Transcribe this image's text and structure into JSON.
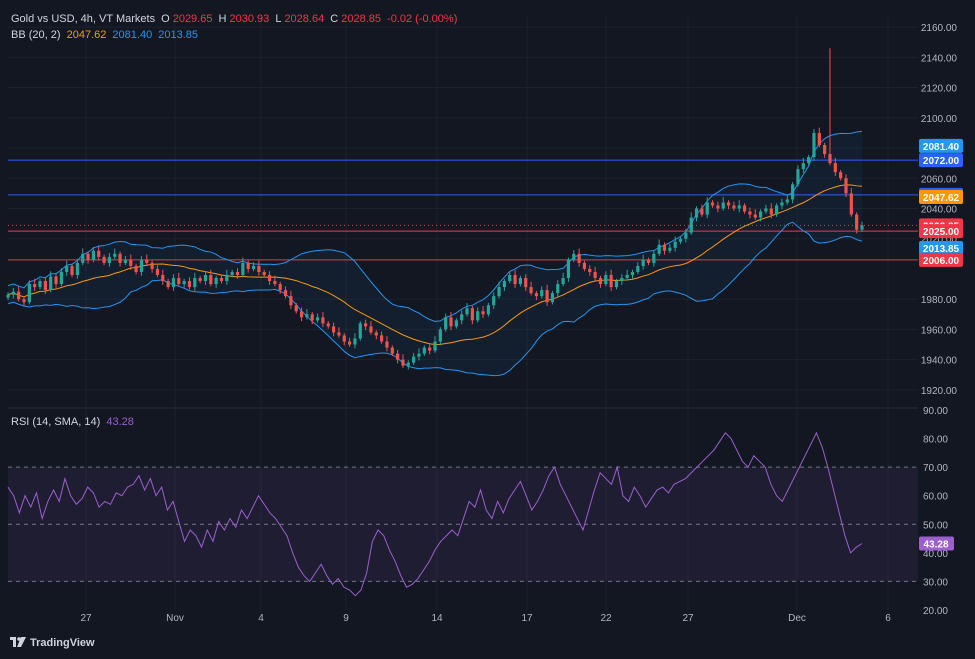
{
  "header": {
    "symbol": "Gold vs USD, 4h, VT Markets",
    "o_label": "O",
    "o_value": "2029.65",
    "h_label": "H",
    "h_value": "2030.93",
    "l_label": "L",
    "l_value": "2028.64",
    "c_label": "C",
    "c_value": "2028.85",
    "change": "-0.02 (-0.00%)",
    "bb_label": "BB (20, 2)",
    "bb_basis": "2047.62",
    "bb_upper": "2081.40",
    "bb_lower": "2013.85",
    "rsi_label": "RSI (14, SMA, 14)",
    "rsi_value": "43.28"
  },
  "watermark": "TradingView",
  "colors": {
    "background": "#131722",
    "up": "#26a69a",
    "down": "#ef5350",
    "bb_band": "#2196f3",
    "bb_basis": "#ff9800",
    "rsi": "#9c5fd0",
    "level_blue": "#2962ff",
    "level_red": "#f23645"
  },
  "chart_data": [
    {
      "type": "candlestick",
      "name": "Gold vs USD 4h",
      "x_ticks": [
        "27",
        "Nov",
        "4",
        "9",
        "14",
        "17",
        "22",
        "27",
        "Dec",
        "6"
      ],
      "y_ticks": [
        "2160.00",
        "2140.00",
        "2120.00",
        "2100.00",
        "2080.00",
        "2060.00",
        "2040.00",
        "2020.00",
        "1980.00",
        "1960.00",
        "1940.00",
        "1920.00"
      ],
      "ylim": [
        1910,
        2168
      ],
      "price_labels": [
        {
          "text": "2081.40",
          "value": 2081.4,
          "color": "#2196f3"
        },
        {
          "text": "2072.00",
          "value": 2072.0,
          "color": "#2962ff"
        },
        {
          "text": "2049.00",
          "value": 2049.0,
          "color": "#2962ff"
        },
        {
          "text": "2047.62",
          "value": 2047.62,
          "color": "#ff9800"
        },
        {
          "text": "2028.85",
          "value": 2028.85,
          "color": "#f23645"
        },
        {
          "text": "2025.00",
          "value": 2025.0,
          "color": "#f23645"
        },
        {
          "text": "2013.85",
          "value": 2013.85,
          "color": "#2196f3"
        },
        {
          "text": "2006.00",
          "value": 2006.0,
          "color": "#f23645"
        }
      ],
      "horizontal_levels": [
        {
          "value": 2072.0,
          "color": "#2962ff",
          "style": "solid"
        },
        {
          "value": 2049.0,
          "color": "#2962ff",
          "style": "solid"
        },
        {
          "value": 2025.0,
          "color": "#f23645",
          "style": "solid"
        },
        {
          "value": 2006.0,
          "color": "#f23645",
          "style": "solid"
        },
        {
          "value": 2028.85,
          "color": "#f23645",
          "style": "dotted"
        }
      ],
      "close_series": [
        1983,
        1985,
        1980,
        1978,
        1990,
        1988,
        1992,
        1986,
        1995,
        1990,
        1998,
        2002,
        1996,
        2004,
        2010,
        2006,
        2012,
        2008,
        2004,
        2008,
        2010,
        2004,
        2006,
        2002,
        1998,
        2006,
        2004,
        2000,
        1996,
        1992,
        1988,
        1994,
        1990,
        1992,
        1988,
        1994,
        1992,
        1996,
        1990,
        1994,
        1992,
        1996,
        1998,
        1996,
        2004,
        2000,
        2002,
        1998,
        1996,
        1992,
        1990,
        1986,
        1982,
        1976,
        1972,
        1968,
        1970,
        1966,
        1968,
        1964,
        1962,
        1958,
        1956,
        1952,
        1950,
        1954,
        1964,
        1962,
        1958,
        1956,
        1952,
        1948,
        1944,
        1940,
        1936,
        1938,
        1942,
        1944,
        1948,
        1946,
        1952,
        1960,
        1968,
        1962,
        1966,
        1970,
        1974,
        1966,
        1972,
        1970,
        1976,
        1982,
        1988,
        1992,
        1996,
        1990,
        1994,
        1988,
        1984,
        1982,
        1986,
        1978,
        1984,
        1990,
        1994,
        2006,
        2010,
        2004,
        2000,
        1998,
        1994,
        1990,
        1996,
        1988,
        1992,
        1994,
        1996,
        1998,
        2002,
        2006,
        2004,
        2010,
        2016,
        2012,
        2014,
        2018,
        2020,
        2024,
        2034,
        2040,
        2036,
        2044,
        2042,
        2040,
        2044,
        2042,
        2040,
        2042,
        2038,
        2036,
        2034,
        2038,
        2040,
        2036,
        2042,
        2044,
        2046,
        2056,
        2066,
        2070,
        2074,
        2090,
        2082,
        2076,
        2070,
        2064,
        2060,
        2050,
        2036,
        2026,
        2028.85
      ],
      "bb": {
        "period": 20,
        "mult": 2
      }
    },
    {
      "type": "line",
      "name": "RSI (14, SMA, 14)",
      "y_ticks": [
        "90.00",
        "80.00",
        "70.00",
        "60.00",
        "50.00",
        "40.00",
        "30.00",
        "20.00"
      ],
      "ylim": [
        20,
        90
      ],
      "bands": {
        "upper": 70,
        "middle": 50,
        "lower": 30
      },
      "current": 43.28,
      "values": [
        63,
        60,
        54,
        60,
        56,
        61,
        52,
        58,
        62,
        58,
        66,
        60,
        57,
        59,
        63,
        61,
        56,
        58,
        57,
        61,
        60,
        63,
        64,
        67,
        62,
        66,
        60,
        63,
        55,
        58,
        51,
        44,
        48,
        46,
        42,
        48,
        44,
        51,
        48,
        52,
        49,
        55,
        52,
        56,
        60,
        57,
        54,
        52,
        49,
        46,
        40,
        35,
        32,
        30,
        33,
        36,
        32,
        29,
        31,
        28,
        27,
        25,
        27,
        33,
        44,
        48,
        46,
        41,
        37,
        32,
        28,
        29,
        31,
        34,
        37,
        41,
        44,
        46,
        48,
        46,
        52,
        58,
        56,
        62,
        55,
        52,
        58,
        54,
        59,
        62,
        65,
        60,
        55,
        58,
        62,
        67,
        70,
        64,
        60,
        56,
        52,
        48,
        55,
        62,
        68,
        66,
        64,
        70,
        60,
        58,
        63,
        60,
        56,
        59,
        62,
        63,
        61,
        64,
        65,
        66,
        68,
        70,
        72,
        74,
        76,
        79,
        82,
        80,
        76,
        72,
        70,
        74,
        72,
        70,
        64,
        60,
        58,
        62,
        66,
        70,
        74,
        78,
        82,
        77,
        70,
        62,
        54,
        46,
        40,
        42,
        43.28
      ],
      "dates_placeholder": null
    }
  ]
}
